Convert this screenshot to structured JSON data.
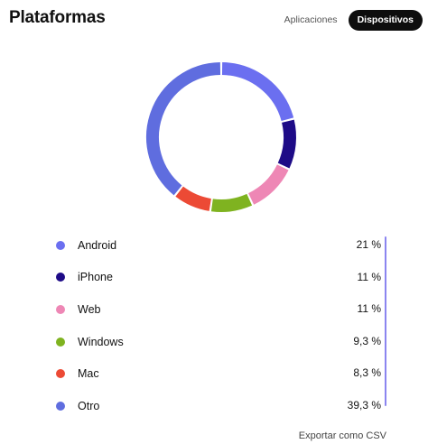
{
  "header": {
    "title": "Plataformas",
    "tabs": [
      {
        "label": "Aplicaciones",
        "active": false
      },
      {
        "label": "Dispositivos",
        "active": true
      }
    ]
  },
  "chart_data": {
    "type": "pie",
    "donut": true,
    "categories": [
      "Android",
      "iPhone",
      "Web",
      "Windows",
      "Mac",
      "Otro"
    ],
    "values": [
      21,
      11,
      11,
      9.3,
      8.3,
      39.3
    ],
    "colors": [
      "#6b6ff0",
      "#1e0b87",
      "#ee87b5",
      "#7fb320",
      "#ec4a35",
      "#5f6ddf"
    ],
    "start": "top",
    "direction": "clockwise"
  },
  "legend": [
    {
      "label": "Android",
      "value": "21 %",
      "color": "#6b6ff0"
    },
    {
      "label": "iPhone",
      "value": "11 %",
      "color": "#1e0b87"
    },
    {
      "label": "Web",
      "value": "11 %",
      "color": "#ee87b5"
    },
    {
      "label": "Windows",
      "value": "9,3 %",
      "color": "#7fb320"
    },
    {
      "label": "Mac",
      "value": "8,3 %",
      "color": "#ec4a35"
    },
    {
      "label": "Otro",
      "value": "39,3 %",
      "color": "#5f6ddf"
    }
  ],
  "footer": {
    "export_label": "Exportar como CSV"
  }
}
